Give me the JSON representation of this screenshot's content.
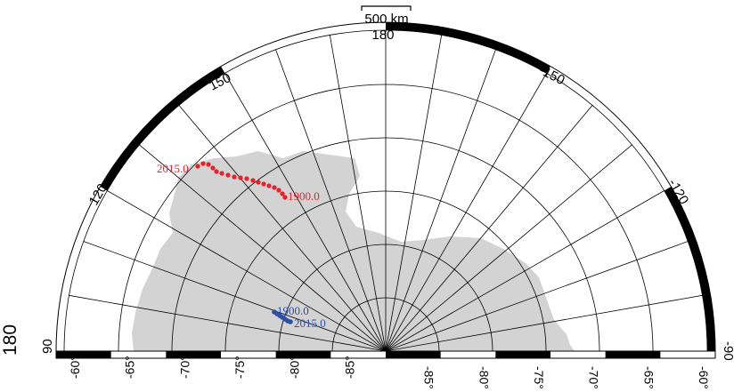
{
  "scale_bar": {
    "label": "500 km"
  },
  "longitude_labels": {
    "top": "180",
    "upper_left": "150",
    "left": "120",
    "upper_right": "-150",
    "right": "-120",
    "bottom_left_edge": "90",
    "bottom_right_edge": "-90",
    "left_margin_partial": "180"
  },
  "degree_symbol": "°",
  "latitude_labels_left": [
    "-60",
    "-65",
    "-70",
    "-75",
    "-80",
    "-85"
  ],
  "latitude_labels_right": [
    "-85",
    "-80",
    "-75",
    "-70",
    "-65",
    "-60"
  ],
  "tracks": {
    "north": {
      "color": "#e8202a",
      "start_label": "2015.0",
      "end_label": "1900.0"
    },
    "south": {
      "color": "#2b4fa8",
      "start_label": "1900.0",
      "end_label": "2015.0"
    }
  },
  "land_color": "#d3d3d3"
}
